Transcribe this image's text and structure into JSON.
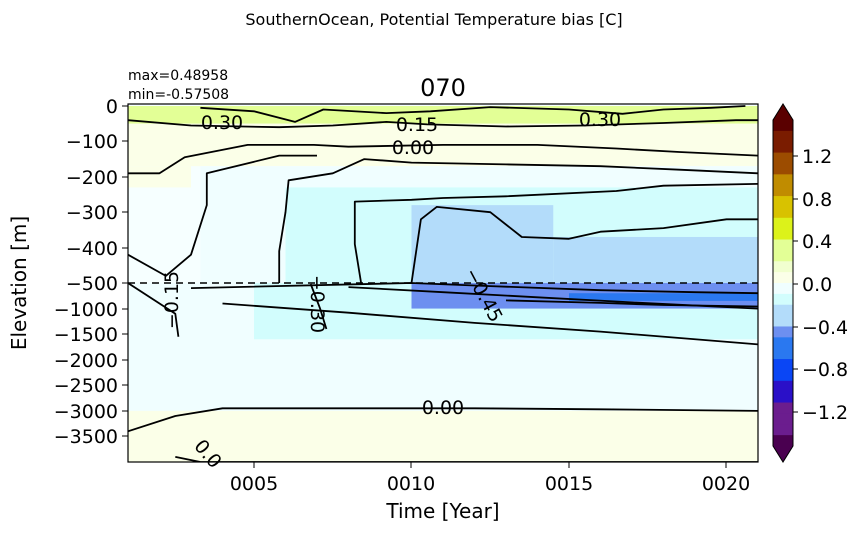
{
  "figure": {
    "suptitle": "SouthernOcean, Potential Temperature bias [C]",
    "title": "070",
    "stats": {
      "max": "max=0.48958",
      "min": "min=-0.57508"
    }
  },
  "chart_data": {
    "type": "heatmap",
    "xlabel": "Time [Year]",
    "ylabel": "Elevation [m]",
    "xlim": [
      1,
      21
    ],
    "x_ticks": [
      5,
      10,
      15,
      20
    ],
    "x_tick_labels": [
      "0005",
      "0010",
      "0015",
      "0020"
    ],
    "y_upper": {
      "ylim": [
        -500,
        0
      ],
      "ticks": [
        0,
        -100,
        -200,
        -300,
        -400,
        -500
      ],
      "tick_labels": [
        "0",
        "−100",
        "−200",
        "−300",
        "−400",
        "−500"
      ]
    },
    "y_lower": {
      "ylim": [
        -4000,
        -500
      ],
      "ticks": [
        -1000,
        -1500,
        -2000,
        -2500,
        -3000,
        -3500
      ],
      "tick_labels": [
        "−1000",
        "−1500",
        "−2000",
        "−2500",
        "−3000",
        "−3500"
      ]
    },
    "split_depth_line": -500,
    "colorbar": {
      "range": [
        -1.5,
        1.5
      ],
      "extend": "both",
      "ticks": [
        1.2,
        0.8,
        0.4,
        0.0,
        -0.4,
        -0.8,
        -1.2
      ],
      "tick_labels": [
        "1.2",
        "0.8",
        "0.4",
        "0.0",
        "−0.4",
        "−0.8",
        "−1.2"
      ],
      "colormap": [
        [
          -1.5,
          "#4a0050"
        ],
        [
          -1.2,
          "#6b1d8e"
        ],
        [
          -1.0,
          "#2a10c8"
        ],
        [
          -0.8,
          "#0a46f5"
        ],
        [
          -0.6,
          "#2a78f0"
        ],
        [
          -0.45,
          "#6d8ff0"
        ],
        [
          -0.3,
          "#b3dcfa"
        ],
        [
          -0.15,
          "#d2fdfd"
        ],
        [
          -0.05,
          "#f0feff"
        ],
        [
          0.05,
          "#fbffe8"
        ],
        [
          0.15,
          "#f1ffcf"
        ],
        [
          0.3,
          "#e3ff96"
        ],
        [
          0.5,
          "#dcf21a"
        ],
        [
          0.7,
          "#d8c200"
        ],
        [
          0.9,
          "#c08c00"
        ],
        [
          1.1,
          "#9c4c00"
        ],
        [
          1.3,
          "#7a1c00"
        ],
        [
          1.5,
          "#5a0000"
        ]
      ]
    },
    "field": {
      "upper_zones": [
        {
          "x": [
            1,
            21
          ],
          "z": [
            0,
            -50
          ],
          "value": 0.25
        },
        {
          "x": [
            1,
            21
          ],
          "z": [
            -50,
            -170
          ],
          "value": 0.05
        },
        {
          "x": [
            1,
            3
          ],
          "z": [
            -170,
            -230
          ],
          "value": 0.08
        },
        {
          "x": [
            3.3,
            21
          ],
          "z": [
            -170,
            -500
          ],
          "value": -0.08
        },
        {
          "x": [
            6,
            21
          ],
          "z": [
            -230,
            -500
          ],
          "value": -0.2
        },
        {
          "x": [
            10,
            14.5
          ],
          "z": [
            -280,
            -500
          ],
          "value": -0.35
        },
        {
          "x": [
            14.5,
            21
          ],
          "z": [
            -370,
            -500
          ],
          "value": -0.35
        }
      ],
      "lower_zones": [
        {
          "x": [
            1,
            21
          ],
          "z": [
            -500,
            -3000
          ],
          "value": -0.05
        },
        {
          "x": [
            1,
            21
          ],
          "z": [
            -3000,
            -4000
          ],
          "value": 0.05
        },
        {
          "x": [
            5,
            21
          ],
          "z": [
            -500,
            -1600
          ],
          "value": -0.2
        },
        {
          "x": [
            10,
            21
          ],
          "z": [
            -500,
            -1000
          ],
          "value": -0.38
        },
        {
          "x": [
            13,
            21
          ],
          "z": [
            -650,
            -900
          ],
          "value": -0.5
        },
        {
          "x": [
            15,
            21
          ],
          "z": [
            -700,
            -850
          ],
          "value": -0.6
        }
      ]
    },
    "contour_labels": [
      "0.30",
      "0.15",
      "0.30",
      "0.00",
      "−0.15",
      "−0.30",
      "−0.45",
      "0.00",
      "0.0"
    ],
    "contours": {
      "upper": [
        {
          "level": "0.30",
          "pts": [
            [
              3.3,
              -5
            ],
            [
              5,
              -15
            ],
            [
              6.3,
              -45
            ],
            [
              7.2,
              -10
            ],
            [
              9.2,
              -20
            ],
            [
              10.6,
              -15
            ],
            [
              12.5,
              -3
            ],
            [
              15,
              -10
            ],
            [
              16.7,
              -22
            ],
            [
              18,
              -10
            ],
            [
              19.5,
              -5
            ],
            [
              20.6,
              0
            ]
          ]
        },
        {
          "level": "0.15",
          "pts": [
            [
              1,
              -40
            ],
            [
              3,
              -55
            ],
            [
              5.8,
              -60
            ],
            [
              7.5,
              -55
            ],
            [
              9.2,
              -45
            ],
            [
              10.5,
              -52
            ],
            [
              13,
              -58
            ],
            [
              15.5,
              -55
            ],
            [
              18,
              -48
            ],
            [
              20.3,
              -40
            ],
            [
              21,
              -40
            ]
          ]
        },
        {
          "level": "0.00",
          "pts": [
            [
              1,
              -190
            ],
            [
              2,
              -190
            ],
            [
              2.8,
              -145
            ],
            [
              4.8,
              -110
            ],
            [
              6.9,
              -110
            ],
            [
              8,
              -115
            ],
            [
              11,
              -110
            ],
            [
              14,
              -110
            ],
            [
              16.5,
              -120
            ],
            [
              18.5,
              -130
            ],
            [
              21,
              -140
            ]
          ]
        },
        {
          "level": "-0.15a",
          "pts": [
            [
              1,
              -420
            ],
            [
              2.2,
              -480
            ],
            [
              3,
              -420
            ],
            [
              3.5,
              -280
            ],
            [
              3.5,
              -190
            ],
            [
              5.8,
              -140
            ],
            [
              7,
              -140
            ]
          ]
        },
        {
          "level": "-0.15b",
          "pts": [
            [
              5.8,
              -500
            ],
            [
              5.8,
              -410
            ],
            [
              6,
              -300
            ],
            [
              6.1,
              -210
            ],
            [
              7.5,
              -190
            ],
            [
              8.5,
              -150
            ],
            [
              10,
              -160
            ],
            [
              13,
              -165
            ],
            [
              16,
              -170
            ],
            [
              18.5,
              -180
            ],
            [
              21,
              -190
            ]
          ]
        },
        {
          "level": "-0.30a",
          "pts": [
            [
              8.4,
              -500
            ],
            [
              8.2,
              -390
            ],
            [
              8.2,
              -270
            ],
            [
              10,
              -265
            ],
            [
              11,
              -260
            ],
            [
              13,
              -255
            ],
            [
              16.5,
              -240
            ],
            [
              18,
              -225
            ],
            [
              21,
              -220
            ]
          ]
        },
        {
          "level": "-0.30b",
          "pts": [
            [
              10,
              -500
            ],
            [
              10.3,
              -320
            ],
            [
              10.8,
              -285
            ],
            [
              12.5,
              -300
            ],
            [
              13.5,
              -370
            ],
            [
              15,
              -375
            ],
            [
              16,
              -355
            ],
            [
              18,
              -345
            ],
            [
              20,
              -320
            ],
            [
              21,
              -320
            ]
          ]
        }
      ],
      "lower": [
        {
          "level": "-0.15a",
          "pts": [
            [
              1,
              -500
            ],
            [
              2.5,
              -1100
            ],
            [
              2.6,
              -1550
            ]
          ]
        },
        {
          "level": "-0.30",
          "pts": [
            [
              6.8,
              -520
            ],
            [
              7.1,
              -1000
            ],
            [
              7.3,
              -1400
            ]
          ]
        },
        {
          "level": "-0.15b",
          "pts": [
            [
              4,
              -900
            ],
            [
              8,
              -1080
            ],
            [
              12,
              -1280
            ],
            [
              16,
              -1450
            ],
            [
              21,
              -1700
            ]
          ]
        },
        {
          "level": "-0.45",
          "pts": [
            [
              3,
              -600
            ],
            [
              10,
              -500
            ],
            [
              12.5,
              -560
            ],
            [
              16,
              -640
            ],
            [
              19,
              -680
            ],
            [
              21,
              -700
            ]
          ]
        },
        {
          "level": "-0.45b",
          "pts": [
            [
              8,
              -580
            ],
            [
              11,
              -680
            ],
            [
              14,
              -780
            ],
            [
              17,
              -880
            ],
            [
              21,
              -1000
            ]
          ]
        },
        {
          "level": "-0.30b",
          "pts": [
            [
              13,
              -840
            ],
            [
              16,
              -890
            ],
            [
              18,
              -930
            ],
            [
              21,
              -960
            ]
          ]
        },
        {
          "level": "0.00",
          "pts": [
            [
              1,
              -3400
            ],
            [
              2.5,
              -3100
            ],
            [
              4,
              -2950
            ],
            [
              8,
              -2950
            ],
            [
              12,
              -2950
            ],
            [
              16,
              -2970
            ],
            [
              21,
              -3000
            ]
          ]
        },
        {
          "level": "0.00b",
          "pts": [
            [
              2.5,
              -3900
            ],
            [
              3.3,
              -4000
            ],
            [
              21,
              -4000
            ]
          ]
        }
      ]
    }
  }
}
